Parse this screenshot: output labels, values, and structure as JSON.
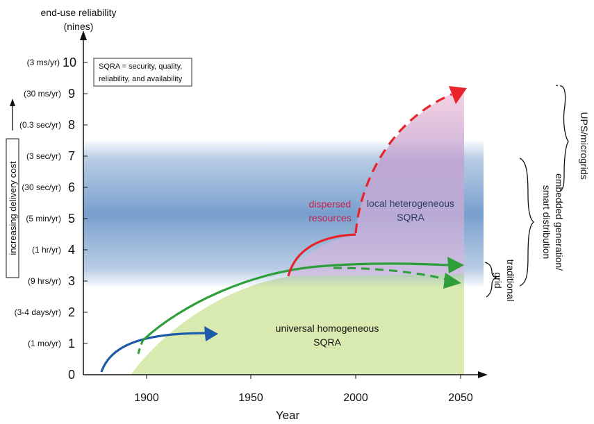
{
  "axes": {
    "y_title_line1": "end-use reliability",
    "y_title_line2": "(nines)",
    "x_title": "Year",
    "y_ticks": [
      {
        "value": "0",
        "note": ""
      },
      {
        "value": "1",
        "note": "(1 mo/yr)"
      },
      {
        "value": "2",
        "note": "(3-4 days/yr)"
      },
      {
        "value": "3",
        "note": "(9 hrs/yr)"
      },
      {
        "value": "4",
        "note": "(1 hr/yr)"
      },
      {
        "value": "5",
        "note": "(5 min/yr)"
      },
      {
        "value": "6",
        "note": "(30 sec/yr)"
      },
      {
        "value": "7",
        "note": "(3 sec/yr)"
      },
      {
        "value": "8",
        "note": "(0.3 sec/yr)"
      },
      {
        "value": "9",
        "note": "(30 ms/yr)"
      },
      {
        "value": "10",
        "note": "(3 ms/yr)"
      }
    ],
    "x_ticks": [
      "1900",
      "1950",
      "2000",
      "2050"
    ]
  },
  "legend_box": {
    "line1": "SQRA = security, quality,",
    "line2": "reliability, and availability"
  },
  "cost_label": "increasing delivery cost",
  "regions": {
    "universal_line1": "universal homogeneous",
    "universal_line2": "SQRA",
    "local_line1": "local heterogeneous",
    "local_line2": "SQRA",
    "dispersed_line1": "dispersed",
    "dispersed_line2": "resources"
  },
  "brackets": {
    "ups": "UPS/microgrids",
    "embedded_line1": "embedded generation/",
    "embedded_line2": "smart distribution",
    "traditional_line1": "traditional",
    "traditional_line2": "grid"
  },
  "colors": {
    "green_line": "#2e9e3a",
    "green_fill": "#d9eab0",
    "blue_band": "#7ea3cf",
    "red_line": "#e8232a",
    "pink_fill": "#f3c1d6",
    "blue_arrow": "#1e5aa8"
  }
}
